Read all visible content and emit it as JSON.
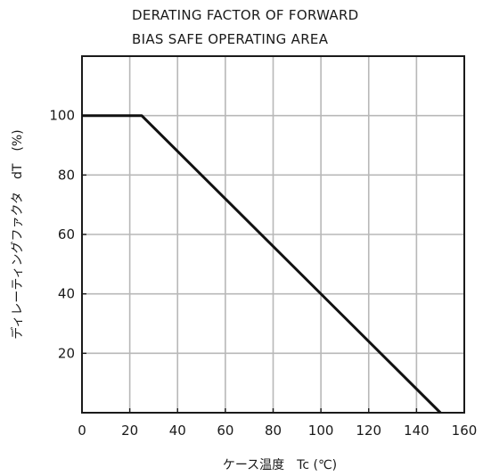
{
  "chart_data": {
    "type": "line",
    "title": [
      "DERATING FACTOR OF FORWARD",
      "BIAS SAFE OPERATING AREA"
    ],
    "xlabel": "ケース温度　Tc (℃)",
    "ylabel": "ディレーティングファクタ　dT　(%)",
    "xlim": [
      0,
      160
    ],
    "ylim": [
      0,
      120
    ],
    "x_ticks": [
      0,
      20,
      40,
      60,
      80,
      100,
      120,
      140,
      160
    ],
    "y_ticks": [
      20,
      40,
      60,
      80,
      100
    ],
    "grid": true,
    "series": [
      {
        "x": [
          0,
          25,
          150
        ],
        "y": [
          100,
          100,
          0
        ]
      }
    ],
    "colors": {
      "line": "#111111",
      "grid": "#b8b8b8",
      "frame": "#1a1a1a"
    }
  }
}
